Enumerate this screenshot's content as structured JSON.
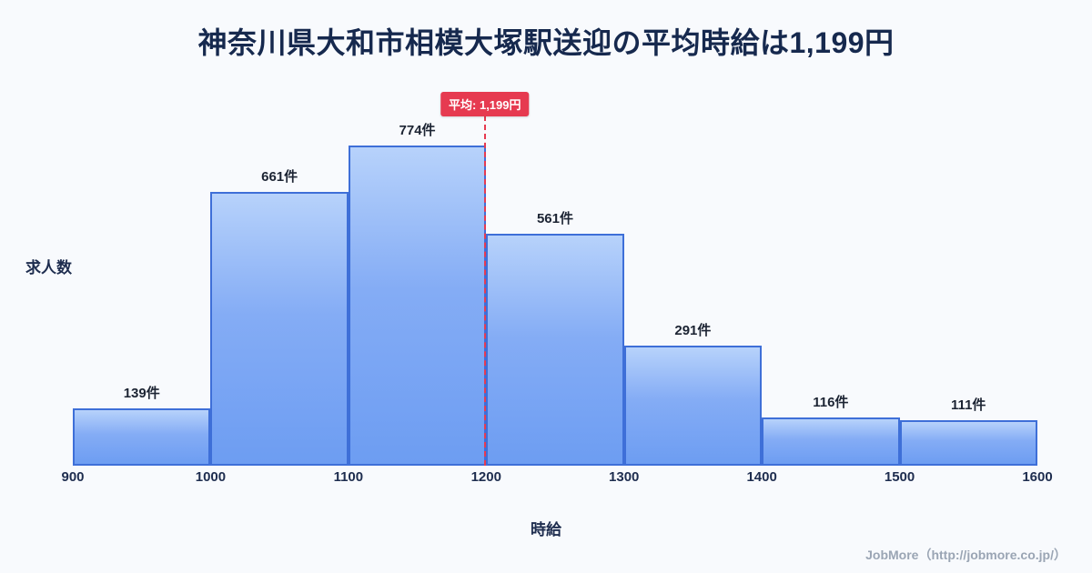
{
  "title": "神奈川県大和市相模大塚駅送迎の平均時給は1,199円",
  "chart_data": {
    "type": "bar",
    "subtype": "histogram",
    "title": "神奈川県大和市相模大塚駅送迎の平均時給は1,199円",
    "xlabel": "時給",
    "ylabel": "求人数",
    "bin_edges": [
      900,
      1000,
      1100,
      1200,
      1300,
      1400,
      1500,
      1600
    ],
    "categories": [
      "900-1000",
      "1000-1100",
      "1100-1200",
      "1200-1300",
      "1300-1400",
      "1400-1500",
      "1500-1600"
    ],
    "values": [
      139,
      661,
      774,
      561,
      291,
      116,
      111
    ],
    "value_labels": [
      "139件",
      "661件",
      "774件",
      "561件",
      "291件",
      "116件",
      "111件"
    ],
    "x_ticks": [
      "900",
      "1000",
      "1100",
      "1200",
      "1300",
      "1400",
      "1500",
      "1600"
    ],
    "xlim": [
      900,
      1600
    ],
    "ylim": [
      0,
      810
    ],
    "grid": false,
    "legend": "none",
    "mean": {
      "value": 1199,
      "label": "平均: 1,199円"
    },
    "colors": {
      "bar_fill_top": "#b7d2fb",
      "bar_fill_bottom": "#6d9df2",
      "bar_border": "#3e6fd8",
      "mean_line": "#e63a50",
      "title_text": "#16294e",
      "background": "#f8fafd"
    }
  },
  "footer": {
    "credit": "JobMore（http://jobmore.co.jp/）"
  }
}
